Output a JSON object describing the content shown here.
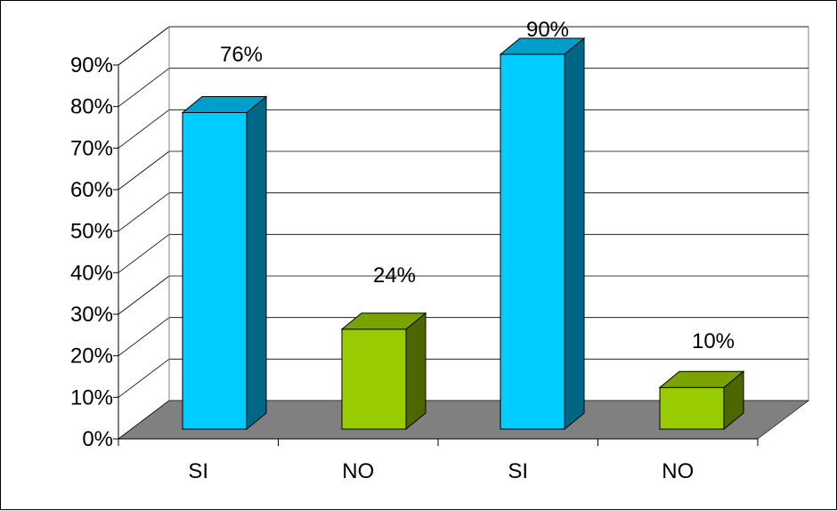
{
  "chart_data": {
    "type": "bar",
    "categories": [
      "SI",
      "NO",
      "SI",
      "NO"
    ],
    "values": [
      76,
      24,
      90,
      10
    ],
    "value_labels": [
      "76%",
      "24%",
      "90%",
      "10%"
    ],
    "bar_colors": [
      "#00CCFF",
      "#99CC00",
      "#00CCFF",
      "#99CC00"
    ],
    "ylim": [
      0,
      90
    ],
    "y_ticks": [
      0,
      10,
      20,
      30,
      40,
      50,
      60,
      70,
      80,
      90
    ],
    "y_tick_labels": [
      "0%",
      "10%",
      "20%",
      "30%",
      "40%",
      "50%",
      "60%",
      "70%",
      "80%",
      "90%"
    ],
    "grid": true,
    "style": "3d-column",
    "colors": {
      "floor": "#808080",
      "gridline": "#000000",
      "si_front": "#00CCFF",
      "si_side": "#006685",
      "si_top": "#009ECB",
      "no_front": "#99CC00",
      "no_side": "#4D6600",
      "no_top": "#7AA300"
    }
  }
}
